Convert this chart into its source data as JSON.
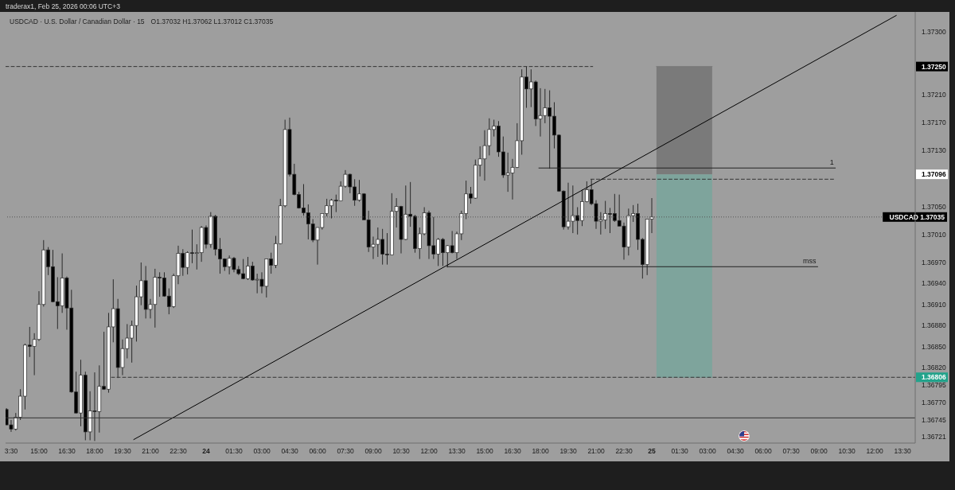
{
  "chart_data": {
    "type": "candlestick",
    "title": "traderax1, Feb 25, 2026 00:06 UTC+3",
    "subtitle": "USDCAD · U.S. Dollar / Canadian Dollar · 15",
    "annotations": [
      "O1.37032 H1.37062 L1.37012 C1.37035",
      "1.37250",
      "1.37096"
    ],
    "x": [
      "2026-02-23T13:15",
      "2026-02-23T13:30",
      "2026-02-23T13:45",
      "2026-02-23T14:00",
      "2026-02-23T14:15",
      "2026-02-23T14:30",
      "2026-02-23T14:45",
      "2026-02-23T15:00",
      "2026-02-23T15:15",
      "2026-02-23T15:30",
      "2026-02-23T15:45",
      "2026-02-23T16:00",
      "2026-02-23T16:15",
      "2026-02-23T16:30",
      "2026-02-23T16:45",
      "2026-02-23T17:00",
      "2026-02-23T17:15",
      "2026-02-23T17:30",
      "2026-02-23T17:45",
      "2026-02-23T18:00",
      "2026-02-23T18:15",
      "2026-02-23T18:30",
      "2026-02-23T18:45",
      "2026-02-23T19:00",
      "2026-02-23T19:15",
      "2026-02-23T19:30",
      "2026-02-23T19:45",
      "2026-02-23T20:00",
      "2026-02-23T20:15",
      "2026-02-23T20:30",
      "2026-02-23T20:45",
      "2026-02-23T21:00",
      "2026-02-23T21:15",
      "2026-02-23T21:30",
      "2026-02-23T21:45",
      "2026-02-23T22:00",
      "2026-02-23T22:15",
      "2026-02-23T22:30",
      "2026-02-23T22:45",
      "2026-02-23T23:00",
      "2026-02-23T23:15",
      "2026-02-23T23:30",
      "2026-02-23T23:45",
      "2026-02-24T00:00",
      "2026-02-24T00:15",
      "2026-02-24T00:30",
      "2026-02-24T00:45",
      "2026-02-24T01:00",
      "2026-02-24T01:15",
      "2026-02-24T01:30",
      "2026-02-24T01:45",
      "2026-02-24T02:00",
      "2026-02-24T02:15",
      "2026-02-24T02:30",
      "2026-02-24T02:45",
      "2026-02-24T03:00",
      "2026-02-24T03:15",
      "2026-02-24T03:30",
      "2026-02-24T03:45",
      "2026-02-24T04:00",
      "2026-02-24T04:15",
      "2026-02-24T04:30",
      "2026-02-24T04:45",
      "2026-02-24T05:00",
      "2026-02-24T05:15",
      "2026-02-24T05:30",
      "2026-02-24T05:45",
      "2026-02-24T06:00",
      "2026-02-24T06:15",
      "2026-02-24T06:30",
      "2026-02-24T06:45",
      "2026-02-24T07:00",
      "2026-02-24T07:15",
      "2026-02-24T07:30",
      "2026-02-24T07:45",
      "2026-02-24T08:00",
      "2026-02-24T08:15",
      "2026-02-24T08:30",
      "2026-02-24T08:45",
      "2026-02-24T09:00",
      "2026-02-24T09:15",
      "2026-02-24T09:30",
      "2026-02-24T09:45",
      "2026-02-24T10:00",
      "2026-02-24T10:15",
      "2026-02-24T10:30",
      "2026-02-24T10:45",
      "2026-02-24T11:00",
      "2026-02-24T11:15",
      "2026-02-24T11:30",
      "2026-02-24T11:45",
      "2026-02-24T12:00",
      "2026-02-24T12:15",
      "2026-02-24T12:30",
      "2026-02-24T12:45",
      "2026-02-24T13:00",
      "2026-02-24T13:15",
      "2026-02-24T13:30",
      "2026-02-24T13:45",
      "2026-02-24T14:00",
      "2026-02-24T14:15",
      "2026-02-24T14:30",
      "2026-02-24T14:45",
      "2026-02-24T15:00",
      "2026-02-24T15:15",
      "2026-02-24T15:30",
      "2026-02-24T15:45",
      "2026-02-24T16:00",
      "2026-02-24T16:15",
      "2026-02-24T16:30",
      "2026-02-24T16:45",
      "2026-02-24T17:00",
      "2026-02-24T17:15",
      "2026-02-24T17:30",
      "2026-02-24T17:45",
      "2026-02-24T18:00",
      "2026-02-24T18:15",
      "2026-02-24T18:30",
      "2026-02-24T18:45",
      "2026-02-24T19:00",
      "2026-02-24T19:15",
      "2026-02-24T19:30",
      "2026-02-24T19:45",
      "2026-02-24T20:00",
      "2026-02-24T20:15",
      "2026-02-24T20:30",
      "2026-02-24T20:45",
      "2026-02-24T21:00",
      "2026-02-24T21:15",
      "2026-02-24T21:30",
      "2026-02-24T21:45",
      "2026-02-24T22:00",
      "2026-02-24T22:15",
      "2026-02-24T22:30",
      "2026-02-24T22:45",
      "2026-02-24T23:00",
      "2026-02-24T23:15",
      "2026-02-24T23:30",
      "2026-02-24T23:45",
      "2026-02-25T00:00"
    ],
    "ohlc": [
      [
        1.3676,
        1.36762,
        1.36738,
        1.36738
      ],
      [
        1.36738,
        1.36745,
        1.36728,
        1.36732
      ],
      [
        1.36732,
        1.36755,
        1.3673,
        1.36749
      ],
      [
        1.36749,
        1.36789,
        1.36745,
        1.36779
      ],
      [
        1.36779,
        1.36854,
        1.3676,
        1.36852
      ],
      [
        1.36852,
        1.36878,
        1.36835,
        1.3685
      ],
      [
        1.3685,
        1.36869,
        1.36809,
        1.3686
      ],
      [
        1.3686,
        1.36929,
        1.36858,
        1.3691
      ],
      [
        1.3691,
        1.37002,
        1.36907,
        1.36988
      ],
      [
        1.36988,
        1.36992,
        1.36952,
        1.36964
      ],
      [
        1.36964,
        1.36988,
        1.36913,
        1.36914
      ],
      [
        1.36914,
        1.36949,
        1.36875,
        1.36908
      ],
      [
        1.36908,
        1.36983,
        1.36898,
        1.36948
      ],
      [
        1.36948,
        1.3695,
        1.36874,
        1.36905
      ],
      [
        1.36905,
        1.36931,
        1.36784,
        1.36785
      ],
      [
        1.36785,
        1.36814,
        1.36754,
        1.36755
      ],
      [
        1.36755,
        1.36831,
        1.36736,
        1.36809
      ],
      [
        1.36809,
        1.36814,
        1.36716,
        1.36728
      ],
      [
        1.36728,
        1.36786,
        1.36716,
        1.36758
      ],
      [
        1.36758,
        1.36813,
        1.36715,
        1.36757
      ],
      [
        1.36757,
        1.36823,
        1.36727,
        1.36793
      ],
      [
        1.36793,
        1.36871,
        1.36788,
        1.36789
      ],
      [
        1.36789,
        1.36898,
        1.36784,
        1.36878
      ],
      [
        1.36878,
        1.36946,
        1.36856,
        1.36904
      ],
      [
        1.36904,
        1.36918,
        1.36805,
        1.3682
      ],
      [
        1.3682,
        1.3686,
        1.36809,
        1.36847
      ],
      [
        1.36847,
        1.36882,
        1.36833,
        1.36862
      ],
      [
        1.36862,
        1.36887,
        1.36827,
        1.3688
      ],
      [
        1.3688,
        1.36937,
        1.36857,
        1.36921
      ],
      [
        1.36921,
        1.3697,
        1.36909,
        1.36944
      ],
      [
        1.36944,
        1.36965,
        1.3689,
        1.36903
      ],
      [
        1.36903,
        1.36918,
        1.3689,
        1.3691
      ],
      [
        1.3691,
        1.36961,
        1.36877,
        1.36949
      ],
      [
        1.36949,
        1.36956,
        1.36921,
        1.36948
      ],
      [
        1.36948,
        1.36956,
        1.36921,
        1.36922
      ],
      [
        1.36922,
        1.36933,
        1.36896,
        1.36907
      ],
      [
        1.36907,
        1.36954,
        1.36905,
        1.36951
      ],
      [
        1.36951,
        1.36994,
        1.36939,
        1.36983
      ],
      [
        1.36983,
        1.36989,
        1.36951,
        1.36963
      ],
      [
        1.36963,
        1.36986,
        1.36953,
        1.36984
      ],
      [
        1.36984,
        1.37017,
        1.36969,
        1.36983
      ],
      [
        1.36983,
        1.36996,
        1.3696,
        1.36984
      ],
      [
        1.36984,
        1.37022,
        1.36971,
        1.3702
      ],
      [
        1.3702,
        1.37023,
        1.3699,
        1.36996
      ],
      [
        1.36996,
        1.37042,
        1.36991,
        1.37036
      ],
      [
        1.37036,
        1.37038,
        1.3698,
        1.36989
      ],
      [
        1.36989,
        1.37005,
        1.36954,
        1.36975
      ],
      [
        1.36975,
        1.36976,
        1.36958,
        1.36964
      ],
      [
        1.36964,
        1.3698,
        1.36953,
        1.36976
      ],
      [
        1.36976,
        1.36978,
        1.36956,
        1.3696
      ],
      [
        1.3696,
        1.36965,
        1.36952,
        1.36954
      ],
      [
        1.36954,
        1.36975,
        1.36946,
        1.36947
      ],
      [
        1.36947,
        1.36978,
        1.36945,
        1.36965
      ],
      [
        1.36965,
        1.36971,
        1.36944,
        1.36945
      ],
      [
        1.36945,
        1.36954,
        1.36926,
        1.36946
      ],
      [
        1.36946,
        1.36956,
        1.36926,
        1.36936
      ],
      [
        1.36936,
        1.36975,
        1.3692,
        1.36975
      ],
      [
        1.36975,
        1.36984,
        1.36954,
        1.36966
      ],
      [
        1.36966,
        1.37008,
        1.36962,
        1.36997
      ],
      [
        1.36997,
        1.37061,
        1.36996,
        1.37051
      ],
      [
        1.37051,
        1.37174,
        1.37049,
        1.3716
      ],
      [
        1.3716,
        1.37177,
        1.37093,
        1.37096
      ],
      [
        1.37096,
        1.37111,
        1.37066,
        1.37067
      ],
      [
        1.37067,
        1.37071,
        1.37047,
        1.37048
      ],
      [
        1.37048,
        1.37082,
        1.37037,
        1.37041
      ],
      [
        1.37041,
        1.37053,
        1.37003,
        1.37025
      ],
      [
        1.37025,
        1.37032,
        1.36999,
        1.37002
      ],
      [
        1.37002,
        1.3702,
        1.36967,
        1.3702
      ],
      [
        1.3702,
        1.3704,
        1.37017,
        1.3704
      ],
      [
        1.3704,
        1.37061,
        1.37036,
        1.37051
      ],
      [
        1.37051,
        1.37061,
        1.37033,
        1.37059
      ],
      [
        1.37059,
        1.37067,
        1.37042,
        1.37058
      ],
      [
        1.37058,
        1.37086,
        1.37058,
        1.37079
      ],
      [
        1.37079,
        1.37102,
        1.37077,
        1.37096
      ],
      [
        1.37096,
        1.37097,
        1.37069,
        1.37078
      ],
      [
        1.37078,
        1.37089,
        1.37051,
        1.37059
      ],
      [
        1.37059,
        1.37088,
        1.37057,
        1.37068
      ],
      [
        1.37068,
        1.37069,
        1.37031,
        1.37031
      ],
      [
        1.37031,
        1.37044,
        1.36985,
        1.36992
      ],
      [
        1.36992,
        1.37007,
        1.36975,
        1.36996
      ],
      [
        1.36996,
        1.3702,
        1.36978,
        1.37003
      ],
      [
        1.37003,
        1.37018,
        1.36967,
        1.36982
      ],
      [
        1.36982,
        1.37012,
        1.36967,
        1.36981
      ],
      [
        1.36981,
        1.37069,
        1.36981,
        1.37043
      ],
      [
        1.37043,
        1.37062,
        1.3702,
        1.3705
      ],
      [
        1.3705,
        1.37051,
        1.36983,
        1.37003
      ],
      [
        1.37003,
        1.3708,
        1.37002,
        1.37039
      ],
      [
        1.37039,
        1.37085,
        1.37021,
        1.37036
      ],
      [
        1.37036,
        1.37038,
        1.36984,
        1.3699
      ],
      [
        1.3699,
        1.3702,
        1.36975,
        1.37011
      ],
      [
        1.37011,
        1.37049,
        1.37009,
        1.37041
      ],
      [
        1.37041,
        1.37044,
        1.36975,
        1.36994
      ],
      [
        1.36994,
        1.37035,
        1.36975,
        1.36982
      ],
      [
        1.36982,
        1.37005,
        1.36965,
        1.37003
      ],
      [
        1.37003,
        1.37005,
        1.36965,
        1.36984
      ],
      [
        1.36984,
        1.36995,
        1.36963,
        1.36994
      ],
      [
        1.36994,
        1.37015,
        1.36983,
        1.36984
      ],
      [
        1.36984,
        1.37014,
        1.36975,
        1.37011
      ],
      [
        1.37011,
        1.37044,
        1.37002,
        1.3704
      ],
      [
        1.3704,
        1.37087,
        1.37032,
        1.37068
      ],
      [
        1.37068,
        1.37078,
        1.37054,
        1.37062
      ],
      [
        1.37062,
        1.37117,
        1.37061,
        1.37109
      ],
      [
        1.37109,
        1.37136,
        1.37093,
        1.37118
      ],
      [
        1.37118,
        1.37159,
        1.37087,
        1.37137
      ],
      [
        1.37137,
        1.37176,
        1.37123,
        1.3716
      ],
      [
        1.3716,
        1.37174,
        1.3715,
        1.37165
      ],
      [
        1.37165,
        1.37172,
        1.37121,
        1.37128
      ],
      [
        1.37128,
        1.3715,
        1.37091,
        1.37095
      ],
      [
        1.37095,
        1.37127,
        1.37071,
        1.37098
      ],
      [
        1.37098,
        1.37118,
        1.3706,
        1.37106
      ],
      [
        1.37106,
        1.37169,
        1.37105,
        1.37144
      ],
      [
        1.37144,
        1.37246,
        1.37124,
        1.37235
      ],
      [
        1.37235,
        1.3725,
        1.37191,
        1.37218
      ],
      [
        1.37218,
        1.37246,
        1.37192,
        1.37228
      ],
      [
        1.37228,
        1.3723,
        1.37165,
        1.37175
      ],
      [
        1.37175,
        1.37219,
        1.3715,
        1.3718
      ],
      [
        1.3718,
        1.37218,
        1.37169,
        1.37191
      ],
      [
        1.37191,
        1.37216,
        1.37104,
        1.37179
      ],
      [
        1.37179,
        1.37199,
        1.37133,
        1.37152
      ],
      [
        1.37152,
        1.37153,
        1.37071,
        1.37072
      ],
      [
        1.37072,
        1.37073,
        1.37017,
        1.37021
      ],
      [
        1.37021,
        1.37084,
        1.37017,
        1.37029
      ],
      [
        1.37029,
        1.3708,
        1.37012,
        1.37037
      ],
      [
        1.37037,
        1.37049,
        1.3701,
        1.3703
      ],
      [
        1.3703,
        1.37074,
        1.37022,
        1.37057
      ],
      [
        1.37057,
        1.37086,
        1.37056,
        1.37074
      ],
      [
        1.37074,
        1.37089,
        1.37052,
        1.37054
      ],
      [
        1.37054,
        1.37059,
        1.37018,
        1.37029
      ],
      [
        1.37029,
        1.37042,
        1.3701,
        1.37031
      ],
      [
        1.37031,
        1.37058,
        1.37018,
        1.3704
      ],
      [
        1.3704,
        1.37048,
        1.37012,
        1.3704
      ],
      [
        1.3704,
        1.37068,
        1.37028,
        1.3703
      ],
      [
        1.3703,
        1.37067,
        1.37022,
        1.37022
      ],
      [
        1.37022,
        1.37027,
        1.36974,
        1.36992
      ],
      [
        1.36992,
        1.37047,
        1.3698,
        1.37037
      ],
      [
        1.37037,
        1.37052,
        1.37028,
        1.3704
      ],
      [
        1.3704,
        1.37054,
        1.36988,
        1.37003
      ],
      [
        1.37003,
        1.37005,
        1.36947,
        1.36967
      ],
      [
        1.36967,
        1.37032,
        1.36952,
        1.37032
      ],
      [
        1.37032,
        1.37062,
        1.37012,
        1.37035
      ]
    ],
    "colors": [
      "#000000",
      "#000000",
      "#ffffff",
      "#ffffff",
      "#ffffff",
      "#000000",
      "#ffffff",
      "#ffffff",
      "#ffffff",
      "#000000",
      "#000000",
      "#000000",
      "#ffffff",
      "#000000",
      "#000000",
      "#000000",
      "#ffffff",
      "#000000",
      "#ffffff",
      "#000000",
      "#ffffff",
      "#000000",
      "#ffffff",
      "#ffffff",
      "#000000",
      "#ffffff",
      "#ffffff",
      "#ffffff",
      "#ffffff",
      "#ffffff",
      "#000000",
      "#ffffff",
      "#ffffff",
      "#000000",
      "#000000",
      "#000000",
      "#ffffff",
      "#ffffff",
      "#000000",
      "#ffffff",
      "#000000",
      "#ffffff",
      "#ffffff",
      "#000000",
      "#ffffff",
      "#000000",
      "#000000",
      "#000000",
      "#ffffff",
      "#000000",
      "#000000",
      "#000000",
      "#ffffff",
      "#000000",
      "#ffffff",
      "#000000",
      "#ffffff",
      "#000000",
      "#ffffff",
      "#ffffff",
      "#ffffff",
      "#000000",
      "#000000",
      "#000000",
      "#000000",
      "#000000",
      "#000000",
      "#ffffff",
      "#ffffff",
      "#ffffff",
      "#ffffff",
      "#000000",
      "#ffffff",
      "#ffffff",
      "#000000",
      "#000000",
      "#ffffff",
      "#000000",
      "#000000",
      "#ffffff",
      "#ffffff",
      "#000000",
      "#000000",
      "#ffffff",
      "#ffffff",
      "#000000",
      "#ffffff",
      "#000000",
      "#000000",
      "#ffffff",
      "#ffffff",
      "#000000",
      "#000000",
      "#ffffff",
      "#000000",
      "#ffffff",
      "#000000",
      "#ffffff",
      "#ffffff",
      "#ffffff",
      "#000000",
      "#ffffff",
      "#ffffff",
      "#ffffff",
      "#ffffff",
      "#ffffff",
      "#000000",
      "#000000",
      "#ffffff",
      "#ffffff",
      "#ffffff",
      "#ffffff",
      "#000000",
      "#ffffff",
      "#000000",
      "#ffffff",
      "#ffffff",
      "#000000",
      "#000000",
      "#000000",
      "#000000",
      "#ffffff",
      "#ffffff",
      "#000000",
      "#ffffff",
      "#ffffff",
      "#000000",
      "#000000",
      "#ffffff",
      "#ffffff",
      "#000000",
      "#000000",
      "#000000",
      "#000000",
      "#ffffff",
      "#ffffff",
      "#000000",
      "#000000",
      "#ffffff",
      "#ffffff"
    ],
    "series": [
      {
        "type": "line",
        "color": "#7a7a7a",
        "x": [
          "2026-02-25T00:15",
          "2026-02-25T03:15"
        ],
        "values": [
          1.3725,
          1.3725
        ],
        "lower": [
          1.37096,
          1.37096
        ],
        "upper": [
          1.3725,
          1.3725
        ]
      },
      {
        "type": "line",
        "color": "#7ea49c",
        "x": [
          "2026-02-25T00:15",
          "2026-02-25T03:15"
        ],
        "values": [
          1.36806,
          1.36806
        ],
        "lower": [
          1.36806,
          1.36806
        ],
        "upper": [
          1.37096,
          1.37096
        ]
      },
      {
        "type": "line",
        "color": "#333333",
        "line_style": "dashed",
        "x": [
          "2026-02-23T13:12",
          "2026-02-24T20:49"
        ],
        "values": [
          1.3725,
          1.3725
        ]
      },
      {
        "type": "line",
        "name": "1",
        "color": "#222222",
        "x": [
          "2026-02-24T17:55",
          "2026-02-25T09:53"
        ],
        "values": [
          1.37105,
          1.37105
        ]
      },
      {
        "type": "line",
        "color": "#333333",
        "line_style": "dashed",
        "x": [
          "2026-02-24T20:43",
          "2026-02-25T09:53"
        ],
        "values": [
          1.37089,
          1.37089
        ]
      },
      {
        "type": "line",
        "name": "mss",
        "color": "#222222",
        "x": [
          "2026-02-24T12:58",
          "2026-02-25T08:56"
        ],
        "values": [
          1.36964,
          1.36964
        ]
      },
      {
        "type": "line",
        "color": "#333333",
        "line_style": "dashed",
        "x": [
          "2026-02-23T18:54",
          "2026-02-25T14:11"
        ],
        "values": [
          1.36806,
          1.36806
        ],
        "value_labels": [
          null,
          "1.36806"
        ]
      },
      {
        "type": "line",
        "color": "#000000",
        "x": [
          "2026-02-23T20:06",
          "2026-02-25T13:10"
        ],
        "values": [
          1.36717,
          1.37323
        ]
      }
    ],
    "ref_lines": [
      {
        "axis": "y",
        "value": 1.37035,
        "label": "USDCAD 1.37035",
        "line_style": "dotted",
        "color": "#555555"
      },
      {
        "axis": "y",
        "value": 1.36748,
        "color": "#333333"
      }
    ],
    "marker": "none",
    "xlim": [
      "2026-02-23T13:12",
      "2026-02-25T14:11"
    ],
    "xticks": [
      {
        "value": "2026-02-23T13:30",
        "label": "3:30"
      },
      {
        "value": "2026-02-23T15:00",
        "label": "15:00"
      },
      {
        "value": "2026-02-23T16:30",
        "label": "16:30"
      },
      {
        "value": "2026-02-23T18:00",
        "label": "18:00"
      },
      {
        "value": "2026-02-23T19:30",
        "label": "19:30"
      },
      {
        "value": "2026-02-23T21:00",
        "label": "21:00"
      },
      {
        "value": "2026-02-23T22:30",
        "label": "22:30"
      },
      {
        "value": "2026-02-24T00:00",
        "label": "24"
      },
      {
        "value": "2026-02-24T01:30",
        "label": "01:30"
      },
      {
        "value": "2026-02-24T03:00",
        "label": "03:00"
      },
      {
        "value": "2026-02-24T04:30",
        "label": "04:30"
      },
      {
        "value": "2026-02-24T06:00",
        "label": "06:00"
      },
      {
        "value": "2026-02-24T07:30",
        "label": "07:30"
      },
      {
        "value": "2026-02-24T09:00",
        "label": "09:00"
      },
      {
        "value": "2026-02-24T10:30",
        "label": "10:30"
      },
      {
        "value": "2026-02-24T12:00",
        "label": "12:00"
      },
      {
        "value": "2026-02-24T13:30",
        "label": "13:30"
      },
      {
        "value": "2026-02-24T15:00",
        "label": "15:00"
      },
      {
        "value": "2026-02-24T16:30",
        "label": "16:30"
      },
      {
        "value": "2026-02-24T18:00",
        "label": "18:00"
      },
      {
        "value": "2026-02-24T19:30",
        "label": "19:30"
      },
      {
        "value": "2026-02-24T21:00",
        "label": "21:00"
      },
      {
        "value": "2026-02-24T22:30",
        "label": "22:30"
      },
      {
        "value": "2026-02-25T00:00",
        "label": "25"
      },
      {
        "value": "2026-02-25T01:30",
        "label": "01:30"
      },
      {
        "value": "2026-02-25T03:00",
        "label": "03:00"
      },
      {
        "value": "2026-02-25T04:30",
        "label": "04:30"
      },
      {
        "value": "2026-02-25T06:00",
        "label": "06:00"
      },
      {
        "value": "2026-02-25T07:30",
        "label": "07:30"
      },
      {
        "value": "2026-02-25T09:00",
        "label": "09:00"
      },
      {
        "value": "2026-02-25T10:30",
        "label": "10:30"
      },
      {
        "value": "2026-02-25T12:00",
        "label": "12:00"
      },
      {
        "value": "2026-02-25T13:30",
        "label": "13:30"
      }
    ],
    "ylim": [
      1.36712,
      1.37328
    ],
    "yticks": [
      {
        "value": 1.373,
        "label": "1.37300"
      },
      {
        "value": 1.3721,
        "label": "1.37210"
      },
      {
        "value": 1.3717,
        "label": "1.37170"
      },
      {
        "value": 1.3713,
        "label": "1.37130"
      },
      {
        "value": 1.3705,
        "label": "1.37050"
      },
      {
        "value": 1.3701,
        "label": "1.37010"
      },
      {
        "value": 1.3697,
        "label": "1.36970"
      },
      {
        "value": 1.3694,
        "label": "1.36940"
      },
      {
        "value": 1.3691,
        "label": "1.36910"
      },
      {
        "value": 1.3688,
        "label": "1.36880"
      },
      {
        "value": 1.3685,
        "label": "1.36850"
      },
      {
        "value": 1.3682,
        "label": "1.36820"
      },
      {
        "value": 1.36795,
        "label": "1.36795"
      },
      {
        "value": 1.3677,
        "label": "1.36770"
      },
      {
        "value": 1.36745,
        "label": "1.36745"
      },
      {
        "value": 1.36721,
        "label": "1.36721"
      }
    ]
  }
}
